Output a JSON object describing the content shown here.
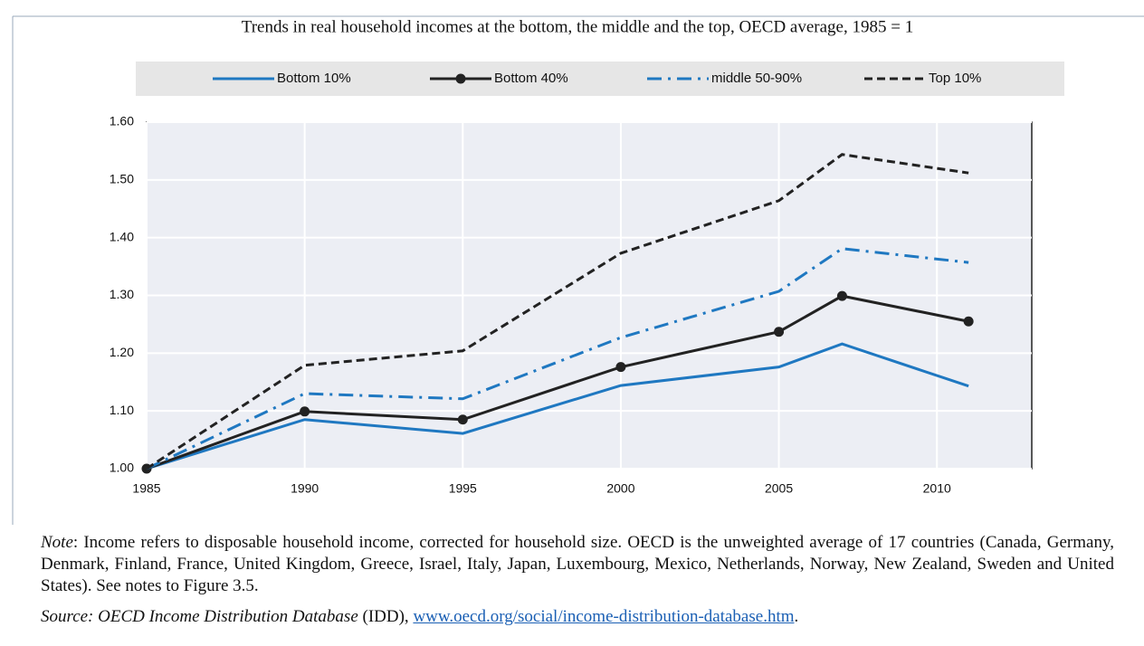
{
  "chart_data": {
    "type": "line",
    "title": "Trends in real household incomes at the bottom, the middle and the top, OECD average, 1985 = 1",
    "x": [
      1985,
      1990,
      1995,
      2000,
      2005,
      2007,
      2011
    ],
    "series": [
      {
        "name": "Bottom 10%",
        "color": "#1f78c1",
        "linestyle": "solid",
        "marker": "none",
        "values": [
          1.0,
          1.085,
          1.061,
          1.144,
          1.176,
          1.216,
          1.143
        ]
      },
      {
        "name": "Bottom 40%",
        "color": "#222222",
        "linestyle": "solid",
        "marker": "circle",
        "values": [
          1.0,
          1.099,
          1.085,
          1.176,
          1.237,
          1.299,
          1.255
        ]
      },
      {
        "name": "middle 50-90%",
        "color": "#1f78c1",
        "linestyle": "dashdot",
        "marker": "none",
        "values": [
          1.0,
          1.13,
          1.121,
          1.227,
          1.307,
          1.381,
          1.357
        ]
      },
      {
        "name": "Top 10%",
        "color": "#222222",
        "linestyle": "dashed",
        "marker": "none",
        "values": [
          1.0,
          1.179,
          1.204,
          1.373,
          1.464,
          1.544,
          1.512
        ]
      }
    ],
    "xlim": [
      1985,
      2013
    ],
    "xticks": [
      1985,
      1990,
      1995,
      2000,
      2005,
      2010
    ],
    "ylim": [
      1.0,
      1.6
    ],
    "yticks": [
      {
        "value": 1.0,
        "label": "1.00"
      },
      {
        "value": 1.1,
        "label": "1.10"
      },
      {
        "value": 1.2,
        "label": "1.20"
      },
      {
        "value": 1.3,
        "label": "1.30"
      },
      {
        "value": 1.4,
        "label": "1.40"
      },
      {
        "value": 1.5,
        "label": "1.50"
      },
      {
        "value": 1.6,
        "label": "1.60"
      }
    ],
    "grid": true,
    "legend": "top"
  },
  "note": {
    "label": "Note",
    "text": ": Income refers to disposable household income, corrected for household size. OECD is the unweighted average of 17 countries (Canada, Germany, Denmark, Finland, France, United Kingdom, Greece, Israel, Italy, Japan, Luxembourg, Mexico, Netherlands, Norway, New Zealand, Sweden and United States). See notes to Figure 3.5."
  },
  "source": {
    "label": "Source: OECD Income Distribution Database",
    "text": " (IDD), ",
    "link": "www.oecd.org/social/income-distribution-database.htm",
    "end": "."
  }
}
